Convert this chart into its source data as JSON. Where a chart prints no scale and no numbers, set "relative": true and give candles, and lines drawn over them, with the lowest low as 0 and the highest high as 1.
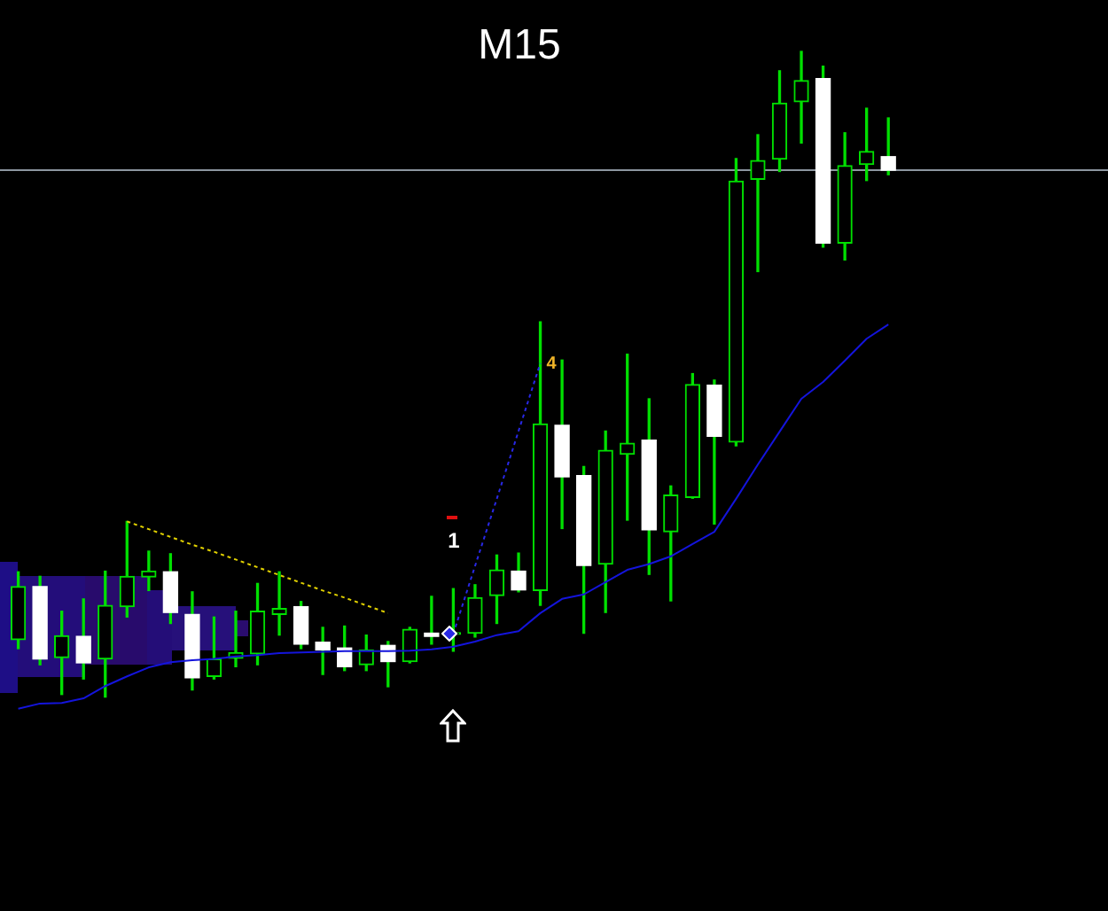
{
  "chart_data": {
    "type": "candlestick",
    "title": "M15",
    "relative": true,
    "marker": "none",
    "categories": [
      null,
      null,
      null,
      null,
      null,
      null,
      null,
      null,
      null,
      null,
      null,
      null,
      null,
      null,
      null,
      null,
      null,
      null,
      null,
      null,
      null,
      null,
      null,
      null,
      null,
      null,
      null,
      null,
      null,
      null,
      null,
      null,
      null,
      null,
      null,
      null,
      null,
      null,
      null,
      null,
      null
    ],
    "ohlc": [
      [
        0.089,
        0.194,
        0.075,
        0.171
      ],
      [
        0.171,
        0.187,
        0.05,
        0.059
      ],
      [
        0.061,
        0.133,
        0.004,
        0.095
      ],
      [
        0.094,
        0.152,
        0.028,
        0.053
      ],
      [
        0.059,
        0.195,
        0,
        0.142
      ],
      [
        0.14,
        0.272,
        0.124,
        0.187
      ],
      [
        0.186,
        0.226,
        0.165,
        0.195
      ],
      [
        0.194,
        0.222,
        0.114,
        0.131
      ],
      [
        0.128,
        0.163,
        0.011,
        0.03
      ],
      [
        0.032,
        0.124,
        0.028,
        0.059
      ],
      [
        0.06,
        0.133,
        0.047,
        0.069
      ],
      [
        0.067,
        0.176,
        0.05,
        0.133
      ],
      [
        0.128,
        0.194,
        0.096,
        0.137
      ],
      [
        0.14,
        0.148,
        0.075,
        0.082
      ],
      [
        0.085,
        0.108,
        0.035,
        0.073
      ],
      [
        0.076,
        0.11,
        0.041,
        0.047
      ],
      [
        0.05,
        0.096,
        0.041,
        0.073
      ],
      [
        0.08,
        0.086,
        0.016,
        0.055
      ],
      [
        0.055,
        0.108,
        0.053,
        0.105
      ],
      [
        0.099,
        0.156,
        0.082,
        0.094
      ],
      [
        0.097,
        0.168,
        0.071,
        0.099
      ],
      [
        0.099,
        0.174,
        0.093,
        0.154
      ],
      [
        0.157,
        0.22,
        0.114,
        0.197
      ],
      [
        0.195,
        0.223,
        0.163,
        0.166
      ],
      [
        0.165,
        0.581,
        0.142,
        0.423
      ],
      [
        0.421,
        0.522,
        0.261,
        0.341
      ],
      [
        0.343,
        0.357,
        0.099,
        0.204
      ],
      [
        0.206,
        0.412,
        0.131,
        0.382
      ],
      [
        0.376,
        0.531,
        0.274,
        0.393
      ],
      [
        0.398,
        0.462,
        0.19,
        0.259
      ],
      [
        0.256,
        0.327,
        0.149,
        0.313
      ],
      [
        0.309,
        0.501,
        0.308,
        0.484
      ],
      [
        0.483,
        0.491,
        0.268,
        0.404
      ],
      [
        0.395,
        0.834,
        0.389,
        0.799
      ],
      [
        0.802,
        0.871,
        0.659,
        0.831
      ],
      [
        0.833,
        0.97,
        0.814,
        0.92
      ],
      [
        0.922,
        1,
        0.858,
        0.955
      ],
      [
        0.958,
        0.977,
        0.697,
        0.703
      ],
      [
        0.703,
        0.874,
        0.677,
        0.823
      ],
      [
        0.825,
        0.912,
        0.8,
        0.845
      ],
      [
        0.837,
        0.897,
        0.809,
        0.816
      ]
    ],
    "color": "#00e000",
    "colors": [
      "#00e000",
      "#ffffff",
      "#00e000",
      "#ffffff",
      "#00e000",
      "#00e000",
      "#00e000",
      "#ffffff",
      "#ffffff",
      "#00e000",
      "#00e000",
      "#00e000",
      "#00e000",
      "#ffffff",
      "#ffffff",
      "#ffffff",
      "#00e000",
      "#ffffff",
      "#00e000",
      "#ffffff",
      "#00e000",
      "#00e000",
      "#00e000",
      "#ffffff",
      "#00e000",
      "#ffffff",
      "#ffffff",
      "#00e000",
      "#00e000",
      "#ffffff",
      "#00e000",
      "#00e000",
      "#ffffff",
      "#00e000",
      "#00e000",
      "#00e000",
      "#00e000",
      "#ffffff",
      "#00e000",
      "#00e000",
      "#ffffff"
    ],
    "series": [
      {
        "type": "line",
        "color": "#1414dc",
        "values": [
          -0.018,
          -0.01,
          -0.009,
          -0.002,
          0.017,
          0.032,
          0.046,
          0.054,
          0.057,
          0.059,
          0.063,
          0.065,
          0.068,
          0.069,
          0.07,
          0.071,
          0.071,
          0.071,
          0.072,
          0.074,
          0.078,
          0.086,
          0.096,
          0.102,
          0.13,
          0.152,
          0.159,
          0.178,
          0.197,
          0.206,
          0.218,
          0.237,
          0.256,
          0.307,
          0.36,
          0.411,
          0.462,
          0.488,
          0.521,
          0.555,
          0.577
        ]
      },
      {
        "type": "line",
        "color": "#e0d000",
        "line_style": "dotted",
        "values": [
          null,
          null,
          null,
          null,
          null,
          0.272,
          0.26,
          0.248,
          0.236,
          0.225,
          0.213,
          0.201,
          0.189,
          0.177,
          0.165,
          0.154,
          0.142,
          0.13,
          null,
          null,
          null,
          null,
          null,
          null,
          null,
          null,
          null,
          null,
          null,
          null,
          null,
          null,
          null,
          null,
          null,
          null,
          null,
          null,
          null,
          null,
          null
        ]
      },
      {
        "type": "line",
        "color": "#2828e6",
        "line_style": "dotted",
        "values": [
          null,
          null,
          null,
          null,
          null,
          null,
          null,
          null,
          null,
          null,
          null,
          null,
          null,
          null,
          null,
          null,
          null,
          null,
          null,
          null,
          0.098,
          0.203,
          0.307,
          0.412,
          0.517,
          null,
          null,
          null,
          null,
          null,
          null,
          null,
          null,
          null,
          null,
          null,
          null,
          null,
          null,
          null,
          null
        ]
      }
    ],
    "ref_lines": [
      {
        "axis": "y",
        "value": 0.816,
        "color": "#8c96a0"
      }
    ],
    "annotations": [
      "1",
      "4"
    ]
  }
}
